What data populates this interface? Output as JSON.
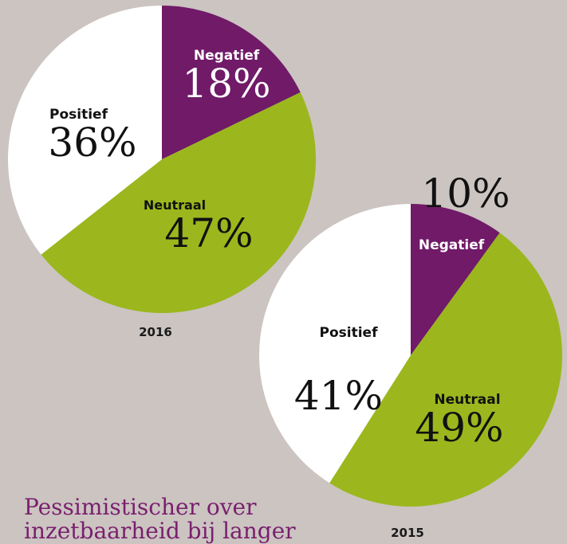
{
  "colors": {
    "background": "#cbc4c1",
    "Negatief": "#701a68",
    "Neutraal": "#9bb71d",
    "Positief": "#ffffff",
    "headline": "#7a1f6e"
  },
  "headline": [
    "Pessimistischer over",
    "inzetbaarheid bij langer"
  ],
  "chart_data": [
    {
      "type": "pie",
      "year_label": "2016",
      "slices": [
        {
          "label": "Negatief",
          "value": 18,
          "value_label": "18%"
        },
        {
          "label": "Neutraal",
          "value": 47,
          "value_label": "47%"
        },
        {
          "label": "Positief",
          "value": 36,
          "value_label": "36%"
        }
      ]
    },
    {
      "type": "pie",
      "year_label": "2015",
      "slices": [
        {
          "label": "Negatief",
          "value": 10,
          "value_label": "10%"
        },
        {
          "label": "Neutraal",
          "value": 49,
          "value_label": "49%"
        },
        {
          "label": "Positief",
          "value": 41,
          "value_label": "41%"
        }
      ]
    }
  ]
}
